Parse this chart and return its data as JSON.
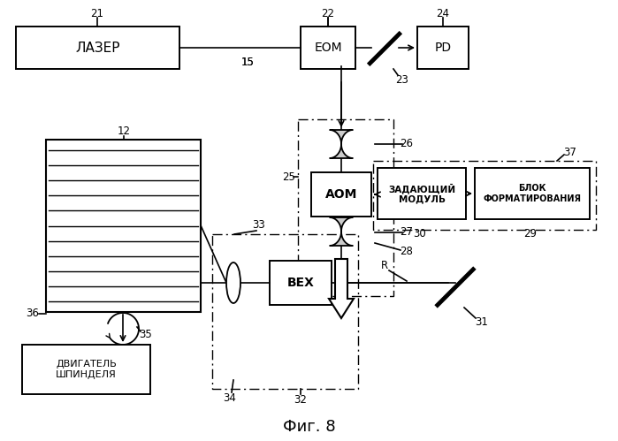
{
  "title": "Фиг. 8",
  "bg": "#ffffff",
  "laser_label": "ЛАЗЕР",
  "eom_label": "ЕОМ",
  "pd_label": "PD",
  "aom_label": "АОМ",
  "zadmod_label": "ЗАДАЮЩИЙ\nМОДУЛЬ",
  "blok_label": "БЛОК\nФОРМАТИРОВАНИЯ",
  "bex_label": "BEX",
  "motor_label": "ДВИГАТЕЛЬ\nШПИНДЕЛЯ"
}
